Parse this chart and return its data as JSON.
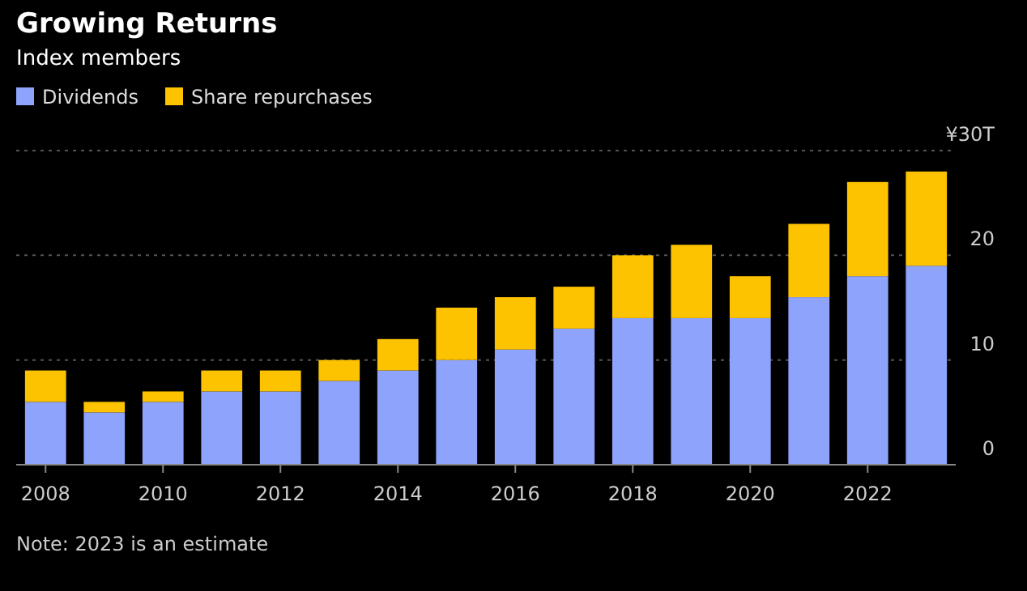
{
  "chart_data": {
    "type": "bar",
    "title": "Growing Returns",
    "subtitle": "Index members",
    "stacked": true,
    "x": [
      2008,
      2009,
      2010,
      2011,
      2012,
      2013,
      2014,
      2015,
      2016,
      2017,
      2018,
      2019,
      2020,
      2021,
      2022,
      2023
    ],
    "series": [
      {
        "name": "Dividends",
        "color": "#8ea3fb",
        "values": [
          6,
          5,
          6,
          7,
          7,
          8,
          9,
          10,
          11,
          13,
          14,
          14,
          14,
          16,
          18,
          19
        ]
      },
      {
        "name": "Share repurchases",
        "color": "#fdc300",
        "values": [
          3,
          1,
          1,
          2,
          2,
          2,
          3,
          5,
          5,
          4,
          6,
          7,
          4,
          7,
          9,
          9
        ]
      }
    ],
    "xlim": [
      2007.5,
      2023.5
    ],
    "xticks": [
      2008,
      2010,
      2012,
      2014,
      2016,
      2018,
      2020,
      2022
    ],
    "ylim": [
      0,
      30
    ],
    "yticks": [
      0,
      10,
      20,
      {
        "value": 30,
        "label": "¥30T"
      }
    ],
    "grid": "y",
    "legend": "top left",
    "annotations": [
      "Note: 2023 is an estimate"
    ]
  }
}
